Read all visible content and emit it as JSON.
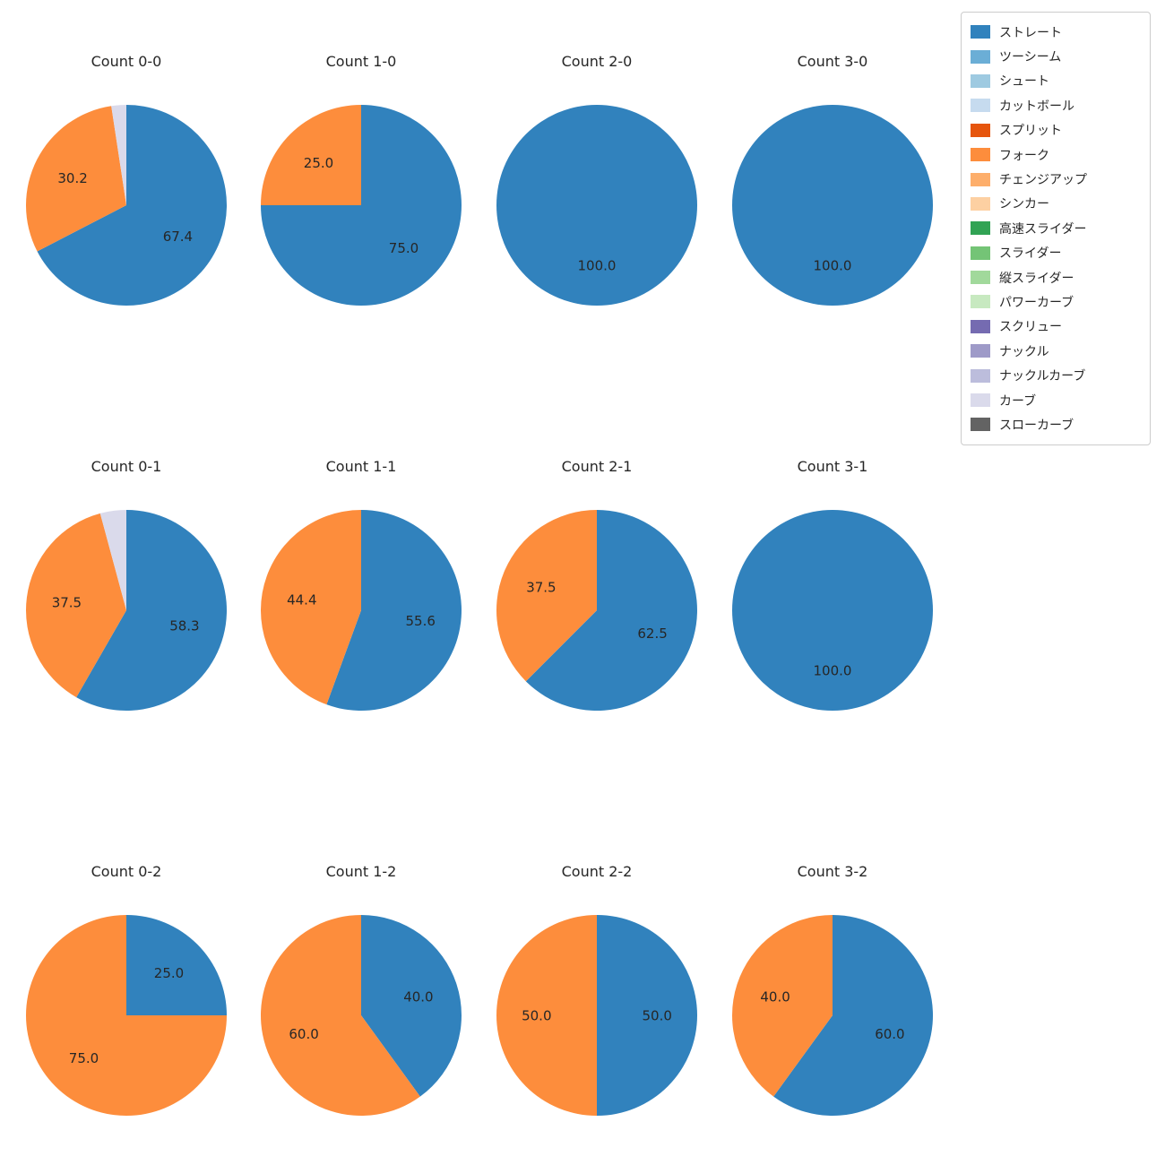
{
  "figure": {
    "background": "#ffffff"
  },
  "legend": {
    "items": [
      {
        "label": "ストレート",
        "color": "#3182bd"
      },
      {
        "label": "ツーシーム",
        "color": "#6baed6"
      },
      {
        "label": "シュート",
        "color": "#9ecae1"
      },
      {
        "label": "カットボール",
        "color": "#c6dbef"
      },
      {
        "label": "スプリット",
        "color": "#e6550d"
      },
      {
        "label": "フォーク",
        "color": "#fd8d3c"
      },
      {
        "label": "チェンジアップ",
        "color": "#fdae6b"
      },
      {
        "label": "シンカー",
        "color": "#fdd0a2"
      },
      {
        "label": "高速スライダー",
        "color": "#31a354"
      },
      {
        "label": "スライダー",
        "color": "#74c476"
      },
      {
        "label": "縦スライダー",
        "color": "#a1d99b"
      },
      {
        "label": "パワーカーブ",
        "color": "#c7e9c0"
      },
      {
        "label": "スクリュー",
        "color": "#756bb1"
      },
      {
        "label": "ナックル",
        "color": "#9e9ac8"
      },
      {
        "label": "ナックルカーブ",
        "color": "#bcbddc"
      },
      {
        "label": "カーブ",
        "color": "#dadaeb"
      },
      {
        "label": "スローカーブ",
        "color": "#636363"
      }
    ]
  },
  "chart_data": {
    "type": "pie",
    "start_angle": 90,
    "direction": "clockwise",
    "value_format": "percent_one_decimal",
    "legend_position": "upper right",
    "layout": {
      "rows": 3,
      "cols": 4
    },
    "charts": [
      {
        "title": "Count 0-0",
        "slices": [
          {
            "label": "ストレート",
            "value": 67.4,
            "label_visible": true
          },
          {
            "label": "フォーク",
            "value": 30.2,
            "label_visible": true
          },
          {
            "label": "カーブ",
            "value": 2.4,
            "label_visible": false
          }
        ]
      },
      {
        "title": "Count 1-0",
        "slices": [
          {
            "label": "ストレート",
            "value": 75.0,
            "label_visible": true
          },
          {
            "label": "フォーク",
            "value": 25.0,
            "label_visible": true
          }
        ]
      },
      {
        "title": "Count 2-0",
        "slices": [
          {
            "label": "ストレート",
            "value": 100.0,
            "label_visible": true
          }
        ]
      },
      {
        "title": "Count 3-0",
        "slices": [
          {
            "label": "ストレート",
            "value": 100.0,
            "label_visible": true
          }
        ]
      },
      {
        "title": "Count 0-1",
        "slices": [
          {
            "label": "ストレート",
            "value": 58.3,
            "label_visible": true
          },
          {
            "label": "フォーク",
            "value": 37.5,
            "label_visible": true
          },
          {
            "label": "カーブ",
            "value": 4.2,
            "label_visible": false
          }
        ]
      },
      {
        "title": "Count 1-1",
        "slices": [
          {
            "label": "ストレート",
            "value": 55.6,
            "label_visible": true
          },
          {
            "label": "フォーク",
            "value": 44.4,
            "label_visible": true
          }
        ]
      },
      {
        "title": "Count 2-1",
        "slices": [
          {
            "label": "ストレート",
            "value": 62.5,
            "label_visible": true
          },
          {
            "label": "フォーク",
            "value": 37.5,
            "label_visible": true
          }
        ]
      },
      {
        "title": "Count 3-1",
        "slices": [
          {
            "label": "ストレート",
            "value": 100.0,
            "label_visible": true
          }
        ]
      },
      {
        "title": "Count 0-2",
        "slices": [
          {
            "label": "ストレート",
            "value": 25.0,
            "label_visible": true
          },
          {
            "label": "フォーク",
            "value": 75.0,
            "label_visible": true
          }
        ]
      },
      {
        "title": "Count 1-2",
        "slices": [
          {
            "label": "ストレート",
            "value": 40.0,
            "label_visible": true
          },
          {
            "label": "フォーク",
            "value": 60.0,
            "label_visible": true
          }
        ]
      },
      {
        "title": "Count 2-2",
        "slices": [
          {
            "label": "ストレート",
            "value": 50.0,
            "label_visible": true
          },
          {
            "label": "フォーク",
            "value": 50.0,
            "label_visible": true
          }
        ]
      },
      {
        "title": "Count 3-2",
        "slices": [
          {
            "label": "ストレート",
            "value": 60.0,
            "label_visible": true
          },
          {
            "label": "フォーク",
            "value": 40.0,
            "label_visible": true
          }
        ]
      }
    ]
  }
}
